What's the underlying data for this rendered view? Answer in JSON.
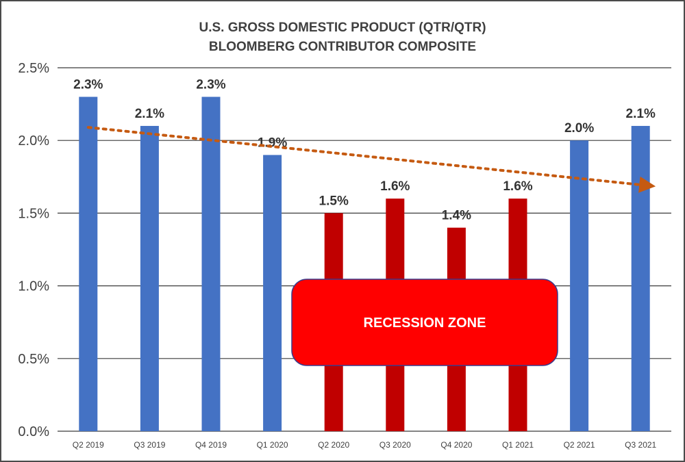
{
  "chart_data": {
    "type": "bar",
    "title": "U.S. GROSS DOMESTIC PRODUCT (QTR/QTR)",
    "subtitle": "BLOOMBERG CONTRIBUTOR COMPOSITE",
    "xlabel": "",
    "ylabel": "",
    "ylim": [
      0,
      2.5
    ],
    "yticks": [
      "0.0%",
      "0.5%",
      "1.0%",
      "1.5%",
      "2.0%",
      "2.5%"
    ],
    "ytick_values": [
      0,
      0.5,
      1.0,
      1.5,
      2.0,
      2.5
    ],
    "categories": [
      "Q2 2019",
      "Q3 2019",
      "Q4 2019",
      "Q1 2020",
      "Q2 2020",
      "Q3 2020",
      "Q4 2020",
      "Q1 2021",
      "Q2 2021",
      "Q3 2021"
    ],
    "values": [
      2.3,
      2.1,
      2.3,
      1.9,
      1.5,
      1.6,
      1.4,
      1.6,
      2.0,
      2.1
    ],
    "data_labels": [
      "2.3%",
      "2.1%",
      "2.3%",
      "1.9%",
      "1.5%",
      "1.6%",
      "1.4%",
      "1.6%",
      "2.0%",
      "2.1%"
    ],
    "bar_colors": [
      "#4472c4",
      "#4472c4",
      "#4472c4",
      "#4472c4",
      "#c00000",
      "#c00000",
      "#c00000",
      "#c00000",
      "#4472c4",
      "#4472c4"
    ],
    "grid": true,
    "legend": "none",
    "trend_line": {
      "from_value": 2.09,
      "to_value": 1.69,
      "color": "#c55a11",
      "style": "dotted-arrow"
    },
    "annotation": {
      "text": "RECESSION ZONE",
      "color": "#ff0000",
      "border_color": "#3a3a8c"
    }
  }
}
